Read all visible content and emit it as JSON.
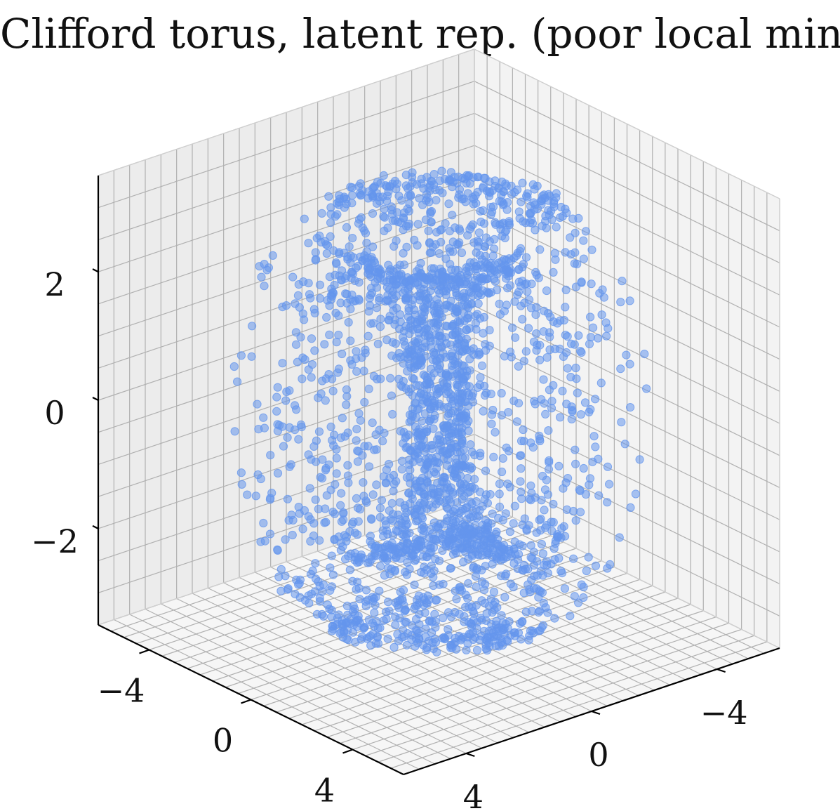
{
  "chart_data": {
    "type": "scatter",
    "projection": "3d",
    "title": "Clifford torus, latent rep. (poor local min.)",
    "xlabel": "",
    "ylabel": "",
    "zlabel": "",
    "grid": true,
    "point_color": "#6495ed",
    "pane_color": "#f2f2f2",
    "grid_color": "#b0b0b0",
    "x_axis": {
      "range": [
        -6,
        6
      ],
      "ticks": [
        -4,
        0,
        4
      ],
      "tick_labels": [
        "−4",
        "0",
        "4"
      ]
    },
    "y_axis": {
      "range": [
        -6,
        6
      ],
      "ticks": [
        -4,
        0,
        4
      ],
      "tick_labels": [
        "−4",
        "0",
        "4"
      ]
    },
    "z_axis": {
      "range": [
        -3.5,
        3.5
      ],
      "ticks": [
        -2,
        0,
        2
      ],
      "tick_labels": [
        "−2",
        "0",
        "2"
      ]
    },
    "torus": {
      "major_radius": 3.0,
      "minor_radius": 2.2,
      "n_points": 2600,
      "sparse_band_center_deg": 135,
      "sparse_band_halfwidth_deg": 40,
      "dense_fraction_in_band": 0.08
    }
  }
}
